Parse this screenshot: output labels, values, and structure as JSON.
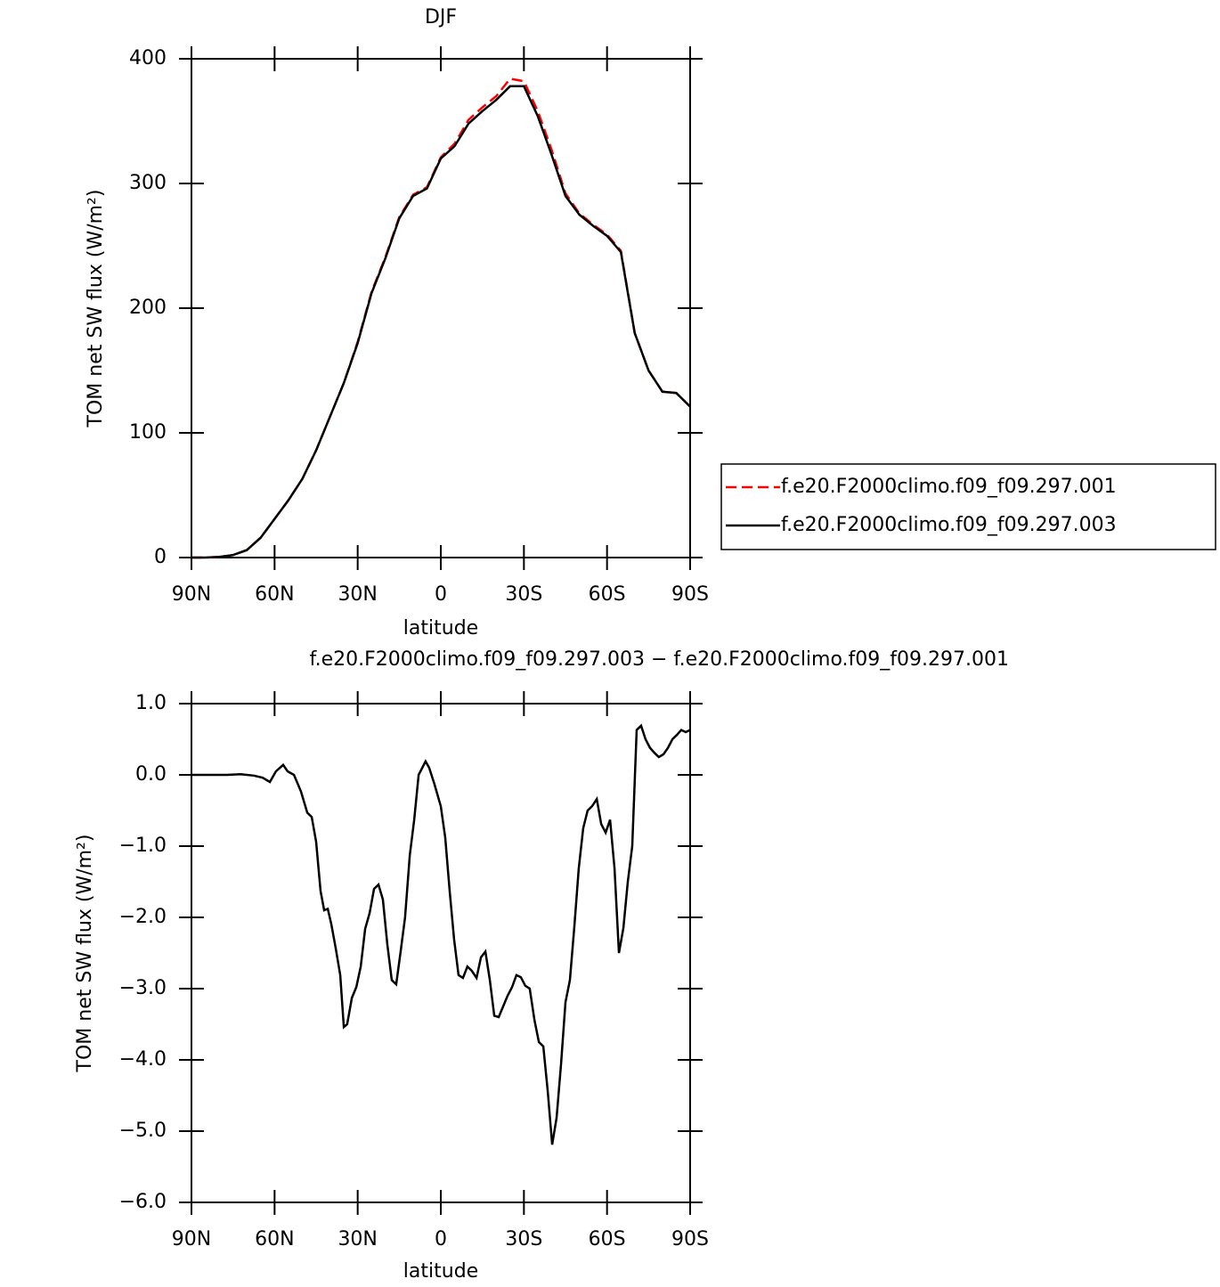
{
  "chart_data": [
    {
      "type": "line",
      "title": "DJF",
      "xlabel": "latitude",
      "ylabel": "TOM net SW flux (W/m²)",
      "x": [
        90,
        85,
        80,
        75,
        70,
        65,
        60,
        55,
        50,
        45,
        40,
        35,
        30,
        25,
        20,
        15,
        10,
        5,
        0,
        -5,
        -10,
        -15,
        -20,
        -25,
        -30,
        -35,
        -40,
        -45,
        -50,
        -55,
        -60,
        -65,
        -70,
        -75,
        -80,
        -85,
        -90
      ],
      "series": [
        {
          "name": "f.e20.F2000climo.f09_f09.297.001",
          "color": "#ff0000",
          "style": "dashed",
          "values": [
            0,
            0,
            0.5,
            2,
            6,
            16,
            31,
            46,
            63,
            86,
            113,
            140,
            173,
            213,
            241,
            273,
            291,
            297,
            321,
            332,
            351,
            361,
            370,
            384,
            382,
            358,
            327,
            292,
            276,
            267,
            259,
            246,
            180,
            150,
            133,
            132,
            121
          ]
        },
        {
          "name": "f.e20.F2000climo.f09_f09.297.003",
          "color": "#000000",
          "style": "solid",
          "values": [
            0,
            0,
            0.5,
            2,
            6,
            16,
            31,
            46,
            63,
            86,
            113,
            140,
            172,
            212,
            240,
            272,
            290,
            296,
            320,
            330,
            348,
            358,
            367,
            378,
            378,
            354,
            323,
            290,
            275,
            266,
            258,
            245,
            180,
            150,
            133,
            132,
            121
          ]
        }
      ],
      "xlim": [
        90,
        -90
      ],
      "xticks": [
        {
          "value": 90,
          "label": "90N"
        },
        {
          "value": 60,
          "label": "60N"
        },
        {
          "value": 30,
          "label": "30N"
        },
        0,
        {
          "value": -30,
          "label": "30S"
        },
        {
          "value": -60,
          "label": "60S"
        },
        {
          "value": -90,
          "label": "90S"
        }
      ],
      "ylim": [
        0,
        400
      ],
      "yticks": [
        0,
        100,
        200,
        300,
        400
      ],
      "legend": "right"
    },
    {
      "type": "line",
      "title": "f.e20.F2000climo.f09_f09.297.003 − f.e20.F2000climo.f09_f09.297.001",
      "xlabel": "latitude",
      "ylabel": "TOM net SW flux (W/m²)",
      "x": [
        90,
        77.1,
        72.3,
        67.5,
        64.3,
        61.7,
        59.5,
        56.9,
        55.3,
        53.0,
        50.5,
        48.2,
        46.6,
        45.0,
        43.4,
        42.1,
        40.8,
        39.5,
        37.9,
        36.3,
        35.0,
        33.8,
        32.1,
        30.5,
        28.9,
        27.3,
        25.7,
        24.1,
        22.5,
        20.9,
        19.3,
        17.7,
        16.1,
        14.5,
        12.9,
        11.2,
        9.6,
        8.0,
        5.5,
        4.2,
        2.3,
        0,
        -1.6,
        -3.2,
        -4.8,
        -6.4,
        -8.0,
        -9.6,
        -11.2,
        -12.9,
        -14.5,
        -16.1,
        -17.7,
        -19.3,
        -20.9,
        -22.5,
        -24.1,
        -25.7,
        -27.3,
        -28.9,
        -30.5,
        -32.1,
        -33.8,
        -35.4,
        -37.0,
        -38.6,
        -40.2,
        -41.8,
        -43.4,
        -45.0,
        -46.6,
        -48.2,
        -49.8,
        -51.4,
        -53.0,
        -54.6,
        -56.3,
        -57.9,
        -59.5,
        -61.1,
        -62.7,
        -64.3,
        -65.9,
        -67.5,
        -69.1,
        -70.7,
        -72.3,
        -73.9,
        -75.5,
        -77.1,
        -78.7,
        -80.4,
        -82.0,
        -83.6,
        -85.2,
        -86.8,
        -88.4,
        -90
      ],
      "values": [
        0,
        0,
        0.01,
        -0.01,
        -0.04,
        -0.1,
        0.05,
        0.14,
        0.05,
        0,
        -0.23,
        -0.53,
        -0.59,
        -0.94,
        -1.63,
        -1.9,
        -1.88,
        -2.1,
        -2.44,
        -2.81,
        -3.54,
        -3.5,
        -3.13,
        -2.98,
        -2.69,
        -2.16,
        -1.94,
        -1.6,
        -1.54,
        -1.75,
        -2.38,
        -2.88,
        -2.94,
        -2.48,
        -2.0,
        -1.13,
        -0.63,
        0,
        0.19,
        0.1,
        -0.13,
        -0.44,
        -0.88,
        -1.63,
        -2.31,
        -2.81,
        -2.85,
        -2.69,
        -2.75,
        -2.85,
        -2.56,
        -2.48,
        -2.88,
        -3.38,
        -3.4,
        -3.25,
        -3.1,
        -2.98,
        -2.81,
        -2.84,
        -2.96,
        -3.0,
        -3.44,
        -3.75,
        -3.81,
        -4.44,
        -5.19,
        -4.81,
        -4.06,
        -3.19,
        -2.88,
        -2.13,
        -1.31,
        -0.75,
        -0.5,
        -0.44,
        -0.34,
        -0.69,
        -0.81,
        -0.63,
        -1.31,
        -2.5,
        -2.15,
        -1.5,
        -1.0,
        0.63,
        0.69,
        0.5,
        0.38,
        0.31,
        0.25,
        0.29,
        0.38,
        0.5,
        0.56,
        0.63,
        0.6,
        0.63
      ],
      "color": "#000000",
      "xlim": [
        90,
        -90
      ],
      "xticks": [
        {
          "value": 90,
          "label": "90N"
        },
        {
          "value": 60,
          "label": "60N"
        },
        {
          "value": 30,
          "label": "30N"
        },
        0,
        {
          "value": -30,
          "label": "30S"
        },
        {
          "value": -60,
          "label": "60S"
        },
        {
          "value": -90,
          "label": "90S"
        }
      ],
      "ylim": [
        -6,
        1
      ],
      "yticks": [
        {
          "value": -6,
          "label": "−6.0"
        },
        {
          "value": -5,
          "label": "−5.0"
        },
        {
          "value": -4,
          "label": "−4.0"
        },
        {
          "value": -3,
          "label": "−3.0"
        },
        {
          "value": -2,
          "label": "−2.0"
        },
        {
          "value": -1,
          "label": "−1.0"
        },
        {
          "value": 0,
          "label": "0.0"
        },
        {
          "value": 1,
          "label": "1.0"
        }
      ]
    }
  ]
}
